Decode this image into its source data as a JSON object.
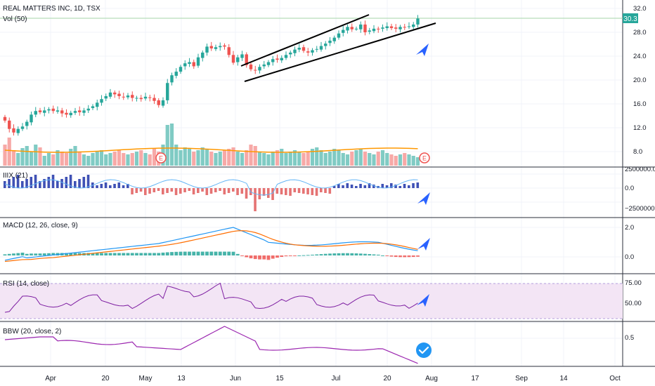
{
  "chart_data": [
    {
      "type": "candlestick",
      "title": "REAL MATTERS INC, 1D, TSX",
      "volume_label": "Vol (50)",
      "price_ticks": [
        "32.0",
        "28.0",
        "24.0",
        "20.0",
        "16.0",
        "12.0",
        "8.0"
      ],
      "price_ylim": [
        5.5,
        33.0
      ],
      "last_price": "30.3",
      "x_tick_labels": [
        "Apr",
        "20",
        "May",
        "13",
        "Jun",
        "15",
        "Jul",
        "20",
        "Aug",
        "17",
        "Sep",
        "14",
        "Oct"
      ],
      "earnings_markers": [
        "E",
        "E"
      ],
      "close": [
        13.2,
        11.8,
        11.2,
        11.8,
        12.2,
        13.0,
        14.2,
        14.8,
        14.6,
        14.9,
        15.1,
        14.8,
        14.9,
        14.4,
        14.2,
        14.5,
        14.8,
        14.6,
        14.9,
        15.2,
        15.6,
        16.2,
        16.8,
        17.3,
        17.9,
        17.6,
        17.3,
        17.1,
        17.4,
        17.0,
        17.0,
        16.8,
        17.2,
        17.0,
        16.5,
        15.8,
        16.6,
        19.5,
        20.8,
        21.4,
        22.2,
        22.8,
        23.0,
        22.3,
        23.8,
        24.6,
        25.6,
        25.3,
        25.5,
        25.7,
        25.6,
        24.2,
        22.9,
        23.8,
        24.3,
        22.5,
        21.8,
        21.6,
        22.2,
        22.6,
        23.0,
        23.5,
        23.4,
        23.7,
        24.2,
        24.6,
        25.1,
        25.4,
        24.9,
        24.6,
        25.0,
        25.2,
        25.7,
        26.1,
        26.6,
        27.1,
        27.8,
        28.4,
        28.9,
        28.5,
        28.6,
        29.3,
        28.0,
        28.3,
        28.6,
        28.5,
        28.8,
        29.0,
        28.7,
        28.6,
        28.9,
        28.8,
        29.0,
        29.3,
        30.3
      ]
    },
    {
      "type": "bar",
      "name": "IIIX (21)",
      "ticks": [
        "2500000.0",
        "0.0",
        "−2500000.0"
      ]
    },
    {
      "type": "line",
      "name": "MACD (12, 26, close, 9)",
      "ticks": [
        "2.0",
        "0.0"
      ]
    },
    {
      "type": "line",
      "name": "RSI (14, close)",
      "ticks": [
        "75.00",
        "50.00"
      ]
    },
    {
      "type": "line",
      "name": "BBW (20, close, 2)",
      "ticks": [
        "0.5"
      ]
    }
  ],
  "colors": {
    "up": "#26a69a",
    "down": "#ef5350",
    "macd": "#2196f3",
    "signal": "#ff6d00",
    "iiix_up": "#3f51b5",
    "rsi": "#7e1fa2",
    "rsi_band": "#f3e5f5",
    "bbw": "#9c27b0",
    "arrow": "#2962ff",
    "check": "#2196f3"
  }
}
